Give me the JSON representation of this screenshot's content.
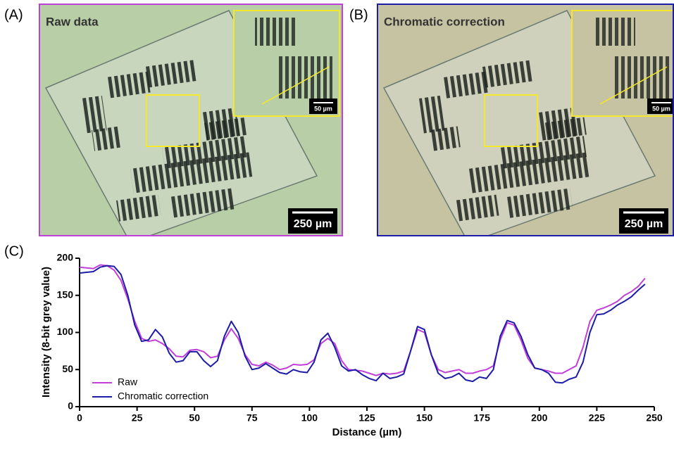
{
  "panels": [
    {
      "label": "(A)",
      "title": "Raw data",
      "scale_bar": "250 µm",
      "inset_scale_bar": "50 µm"
    },
    {
      "label": "(B)",
      "title": "Chromatic correction",
      "scale_bar": "250 µm",
      "inset_scale_bar": "50 µm"
    }
  ],
  "chart_data": {
    "type": "line",
    "panel_label": "(C)",
    "x_label": "Distance (µm)",
    "y_label": "Intensity (8-bit grey value)",
    "x": [
      0,
      3,
      6,
      9,
      12,
      15,
      18,
      21,
      24,
      27,
      30,
      33,
      36,
      39,
      42,
      45,
      48,
      51,
      54,
      57,
      60,
      63,
      66,
      69,
      72,
      75,
      78,
      81,
      84,
      87,
      90,
      93,
      96,
      99,
      102,
      105,
      108,
      111,
      114,
      117,
      120,
      123,
      126,
      129,
      132,
      135,
      138,
      141,
      144,
      147,
      150,
      153,
      156,
      159,
      162,
      165,
      168,
      171,
      174,
      177,
      180,
      183,
      186,
      189,
      192,
      195,
      198,
      201,
      204,
      207,
      210,
      213,
      216,
      219,
      222,
      225,
      228,
      231,
      234,
      237,
      240,
      243,
      246
    ],
    "series": [
      {
        "name": "Raw",
        "color": "#c03fd8",
        "values": [
          188,
          187,
          186,
          191,
          190,
          184,
          170,
          145,
          115,
          92,
          88,
          90,
          85,
          78,
          68,
          67,
          76,
          77,
          74,
          66,
          68,
          90,
          105,
          92,
          70,
          57,
          55,
          60,
          56,
          50,
          52,
          57,
          56,
          57,
          63,
          85,
          92,
          85,
          62,
          50,
          49,
          48,
          45,
          42,
          45,
          44,
          45,
          48,
          75,
          104,
          100,
          70,
          50,
          46,
          48,
          50,
          45,
          45,
          48,
          50,
          55,
          90,
          113,
          110,
          90,
          65,
          52,
          50,
          48,
          45,
          45,
          50,
          55,
          80,
          115,
          130,
          133,
          137,
          142,
          150,
          155,
          162,
          173
        ]
      },
      {
        "name": "Chromatic correction",
        "color": "#1c1ca8",
        "values": [
          180,
          181,
          182,
          188,
          190,
          189,
          178,
          150,
          110,
          88,
          90,
          104,
          94,
          72,
          60,
          62,
          74,
          74,
          62,
          54,
          62,
          95,
          115,
          100,
          68,
          50,
          52,
          58,
          52,
          46,
          44,
          50,
          47,
          46,
          60,
          90,
          99,
          80,
          55,
          48,
          50,
          43,
          38,
          35,
          45,
          38,
          40,
          44,
          75,
          108,
          104,
          70,
          45,
          38,
          40,
          45,
          36,
          34,
          40,
          38,
          50,
          95,
          116,
          113,
          95,
          70,
          52,
          50,
          45,
          33,
          32,
          37,
          40,
          60,
          100,
          124,
          125,
          130,
          137,
          142,
          148,
          157,
          165
        ]
      }
    ],
    "xlim": [
      0,
      250
    ],
    "xticks": [
      0,
      25,
      50,
      75,
      100,
      125,
      150,
      175,
      200,
      225,
      250
    ],
    "ylim": [
      0,
      200
    ],
    "yticks": [
      0,
      50,
      100,
      150,
      200
    ],
    "grid": false,
    "legend": "lower left"
  }
}
